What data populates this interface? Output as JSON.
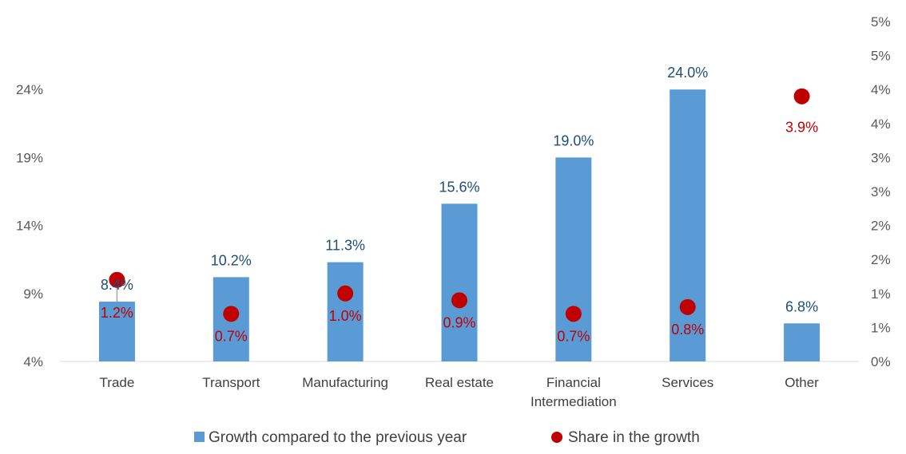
{
  "chart_data": {
    "type": "bar",
    "categories": [
      "Trade",
      "Transport",
      "Manufacturing",
      "Real estate",
      "Financial Intermediation",
      "Services",
      "Other"
    ],
    "category_lines": [
      [
        "Trade"
      ],
      [
        "Transport"
      ],
      [
        "Manufacturing"
      ],
      [
        "Real estate"
      ],
      [
        "Financial",
        "Intermediation"
      ],
      [
        "Services"
      ],
      [
        "Other"
      ]
    ],
    "series": [
      {
        "name": "Growth compared to the previous year",
        "type": "bar",
        "axis": "left",
        "color": "#5b9bd5",
        "values": [
          8.4,
          10.2,
          11.3,
          15.6,
          19.0,
          24.0,
          6.8
        ],
        "labels": [
          "8.4%",
          "10.2%",
          "11.3%",
          "15.6%",
          "19.0%",
          "24.0%",
          "6.8%"
        ]
      },
      {
        "name": "Share in the growth",
        "type": "scatter",
        "axis": "right",
        "color": "#c00000",
        "values": [
          1.2,
          0.7,
          1.0,
          0.9,
          0.7,
          0.8,
          3.9
        ],
        "labels": [
          "1.2%",
          "0.7%",
          "1.0%",
          "0.9%",
          "0.7%",
          "0.8%",
          "3.9%"
        ]
      }
    ],
    "left_axis": {
      "ylim": [
        4,
        29
      ],
      "ticks": [
        4,
        9,
        14,
        19,
        24
      ],
      "tick_labels": [
        "4%",
        "9%",
        "14%",
        "19%",
        "24%"
      ]
    },
    "right_axis": {
      "ylim": [
        0,
        5
      ],
      "ticks": [
        0,
        0.5,
        1,
        1.5,
        2,
        2.5,
        3,
        3.5,
        4,
        4.5,
        5
      ],
      "tick_labels": [
        "0%",
        "1%",
        "1%",
        "2%",
        "2%",
        "3%",
        "3%",
        "4%",
        "4%",
        "5%",
        "5%"
      ]
    },
    "grid": false,
    "legend_position": "bottom"
  }
}
